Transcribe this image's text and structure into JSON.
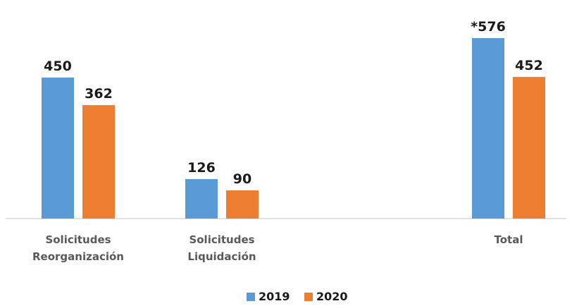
{
  "chart_data": {
    "type": "bar",
    "categories": [
      [
        "Solicitudes",
        "Reorganización"
      ],
      [
        "Solicitudes",
        "Liquidación"
      ],
      [
        "Total"
      ]
    ],
    "series": [
      {
        "name": "2019",
        "color": "#5b9bd5",
        "values": [
          450,
          126,
          576
        ],
        "labels": [
          "450",
          "126",
          "*576"
        ]
      },
      {
        "name": "2020",
        "color": "#ed7d31",
        "values": [
          362,
          90,
          452
        ],
        "labels": [
          "362",
          "90",
          "452"
        ]
      }
    ],
    "ylim": [
      0,
      576
    ],
    "grid": false,
    "legend": "bottom-center",
    "axis_color": "#d9d9d9"
  }
}
